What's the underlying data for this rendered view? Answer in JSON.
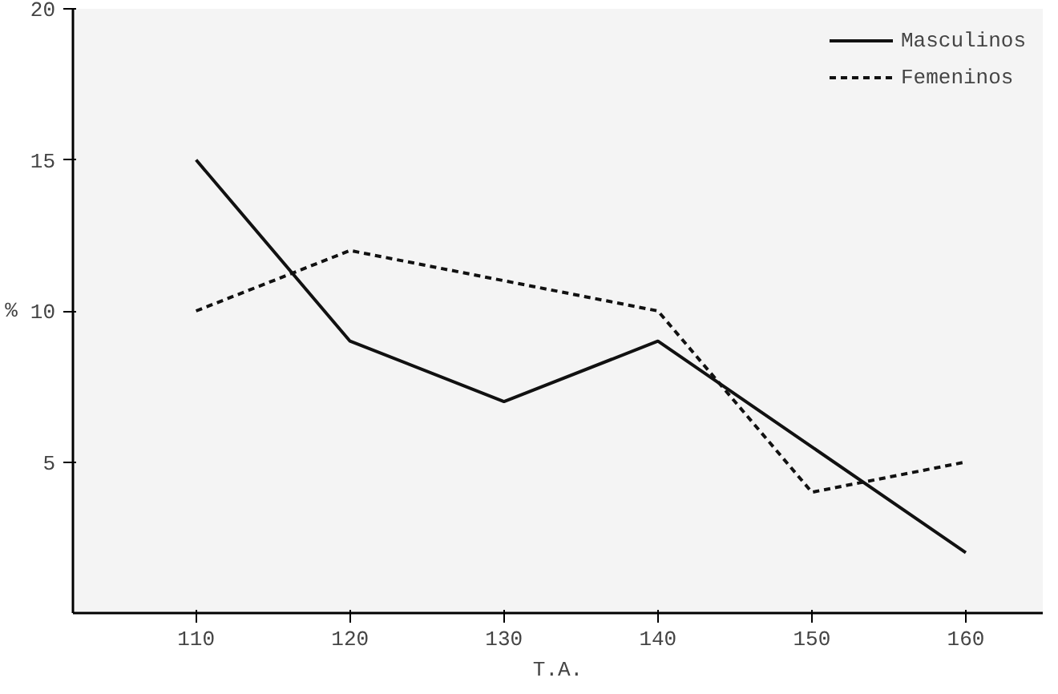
{
  "chart_data": {
    "type": "line",
    "xlabel": "T.A.",
    "ylabel": "%",
    "x": [
      110,
      120,
      130,
      140,
      150,
      160
    ],
    "series": [
      {
        "name": "Masculinos",
        "color": "#111111",
        "values": [
          15,
          9,
          7,
          9,
          5.5,
          2
        ],
        "line_style": "solid"
      },
      {
        "name": "Femeninos",
        "color": "#111111",
        "values": [
          10,
          12,
          11,
          10,
          4,
          5
        ],
        "line_style": "dashed"
      }
    ],
    "xlim": [
      102,
      165
    ],
    "ylim": [
      0,
      20
    ],
    "xticks": [
      110,
      120,
      130,
      140,
      150,
      160
    ],
    "yticks": [
      5,
      10,
      15,
      20
    ],
    "grid": false,
    "legend": "top right",
    "marker": "none"
  }
}
